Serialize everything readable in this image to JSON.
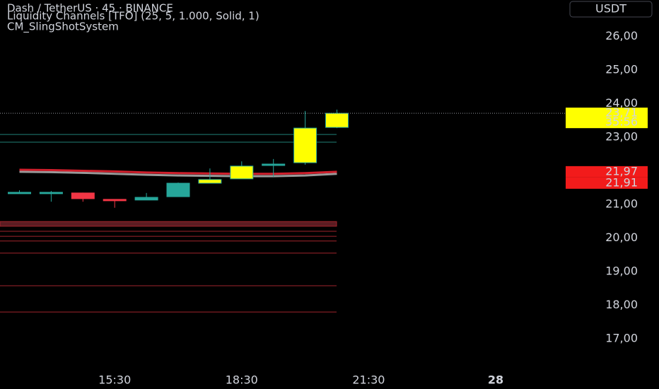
{
  "chart_data": {
    "type": "candlestick",
    "title": "Dash / TetherUS · 45 · BINANCE",
    "indicators": [
      "Liquidity Channels [TFO] (25, 5, 1.000, Solid, 1)",
      "CM_SlingShotSystem"
    ],
    "currency": "USDT",
    "categories": [
      null,
      null,
      null,
      "15:30",
      null,
      null,
      null,
      "18:30",
      null,
      null,
      null,
      "21:30",
      null,
      null,
      null,
      "28"
    ],
    "open": [
      21.35,
      21.36,
      21.34,
      21.15,
      21.13,
      21.23,
      21.63,
      21.76,
      22.2,
      22.24,
      23.29,
      null,
      null,
      null,
      null,
      null
    ],
    "high": [
      21.42,
      21.4,
      21.35,
      21.15,
      21.34,
      21.65,
      22.07,
      22.28,
      22.35,
      23.78,
      23.82,
      null,
      null,
      null,
      null,
      null
    ],
    "low": [
      21.33,
      21.08,
      21.08,
      20.9,
      21.13,
      21.23,
      21.63,
      21.76,
      21.82,
      22.18,
      23.27,
      null,
      null,
      null,
      null,
      null
    ],
    "close": [
      21.36,
      21.36,
      21.17,
      21.14,
      21.21,
      21.63,
      21.74,
      22.14,
      22.2,
      23.27,
      23.71,
      null,
      null,
      null,
      null,
      null
    ],
    "candle_colors": [
      "#26a69a",
      "#26a69a",
      "#f23645",
      "#f23645",
      "#26a69a",
      "#26a69a",
      "#ffff00",
      "#ffff00",
      "#26a69a",
      "#ffff00",
      "#ffff00",
      null,
      null,
      null,
      null,
      null
    ],
    "lines": [
      {
        "color": "#9a9a9a",
        "values": [
          21.97,
          21.96,
          21.94,
          21.91,
          21.88,
          21.86,
          21.85,
          21.84,
          21.84,
          21.86,
          21.91,
          null,
          null,
          null,
          null,
          null
        ]
      },
      {
        "color": "#d01f2c",
        "values": [
          22.03,
          22.02,
          22.0,
          21.98,
          21.95,
          21.93,
          21.92,
          21.91,
          21.91,
          21.93,
          21.97,
          null,
          null,
          null,
          null,
          null
        ]
      }
    ],
    "levels": [
      {
        "value": 23.08,
        "color": "#1f7f76"
      },
      {
        "value": 22.85,
        "color": "#1f7f76"
      },
      {
        "value": 20.2,
        "color": "#a0242c"
      },
      {
        "value": 20.05,
        "color": "#a0242c"
      },
      {
        "value": 19.91,
        "color": "#a0242c"
      },
      {
        "value": 19.55,
        "color": "#a0242c"
      },
      {
        "value": 18.58,
        "color": "#a0242c"
      },
      {
        "value": 17.8,
        "color": "#a0242c"
      }
    ],
    "bands": [
      {
        "from": 20.35,
        "to": 20.49,
        "color": "#5c1c22"
      }
    ],
    "price_labels": [
      {
        "value": 23.71,
        "label": "23,71",
        "color": "#ffff00",
        "text_color": "#000000"
      },
      {
        "value": 21.97,
        "label": "21,97",
        "color": "#f21b1b",
        "text_color": "#ffffff"
      },
      {
        "value": 21.91,
        "label": "21,91",
        "color": "#f21b1b",
        "text_color": "#ffffff"
      }
    ],
    "countdown": "35:56",
    "ylim": [
      16.14,
      27.08
    ],
    "yticks": [
      {
        "value": 17,
        "label": "17,00"
      },
      {
        "value": 18,
        "label": "18,00"
      },
      {
        "value": 19,
        "label": "19,00"
      },
      {
        "value": 20,
        "label": "20,00"
      },
      {
        "value": 21,
        "label": "21,00"
      },
      {
        "value": 23,
        "label": "23,00"
      },
      {
        "value": 24,
        "label": "24,00"
      },
      {
        "value": 25,
        "label": "25,00"
      },
      {
        "value": 26,
        "label": "26,00"
      }
    ],
    "grid": false
  }
}
